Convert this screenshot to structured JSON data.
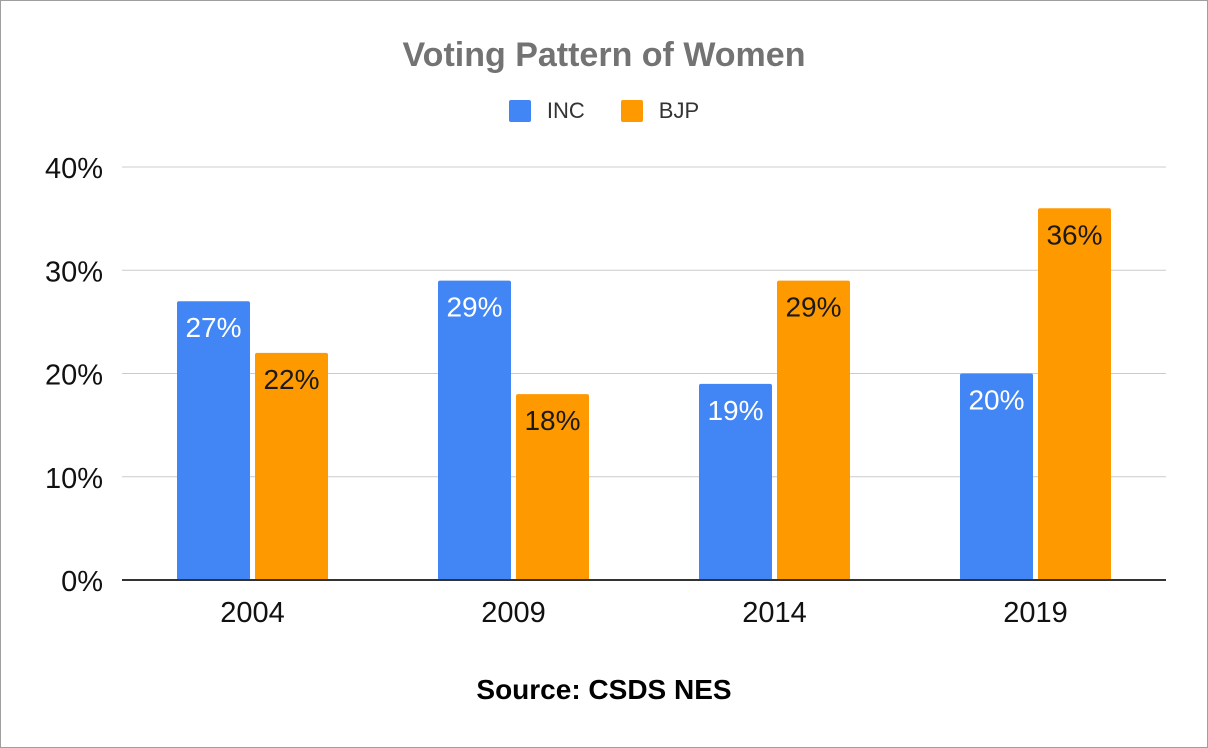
{
  "chart_data": {
    "type": "bar",
    "title": "Voting Pattern of Women",
    "categories": [
      "2004",
      "2009",
      "2014",
      "2019"
    ],
    "series": [
      {
        "name": "INC",
        "color": "#4285f4",
        "values": [
          27,
          29,
          19,
          20
        ],
        "labels": [
          "27%",
          "29%",
          "19%",
          "20%"
        ],
        "label_color": "#ffffff"
      },
      {
        "name": "BJP",
        "color": "#ff9900",
        "values": [
          22,
          18,
          29,
          36
        ],
        "labels": [
          "22%",
          "18%",
          "29%",
          "36%"
        ],
        "label_color": "#1a1a1a"
      }
    ],
    "ylim": [
      0,
      40
    ],
    "yticks": [
      0,
      10,
      20,
      30,
      40
    ],
    "ytick_labels": [
      "0%",
      "10%",
      "20%",
      "30%",
      "40%"
    ],
    "xlabel": "",
    "ylabel": "",
    "grid": true,
    "legend_position": "top-center",
    "footer": "Source: CSDS NES"
  }
}
